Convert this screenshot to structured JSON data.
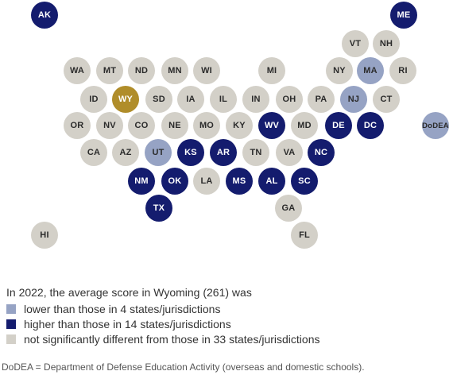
{
  "colors": {
    "lower": "#96A3C4",
    "higher": "#141C6E",
    "not_significant": "#D3D0C8",
    "focal": "#B08D2A",
    "text_dark_bg": "#ffffff",
    "text_light_bg": "#2b2b2b"
  },
  "states": [
    {
      "code": "AK",
      "category": "higher"
    },
    {
      "code": "ME",
      "category": "higher"
    },
    {
      "code": "VT",
      "category": "not_significant"
    },
    {
      "code": "NH",
      "category": "not_significant"
    },
    {
      "code": "WA",
      "category": "not_significant"
    },
    {
      "code": "MT",
      "category": "not_significant"
    },
    {
      "code": "ND",
      "category": "not_significant"
    },
    {
      "code": "MN",
      "category": "not_significant"
    },
    {
      "code": "WI",
      "category": "not_significant"
    },
    {
      "code": "MI",
      "category": "not_significant"
    },
    {
      "code": "NY",
      "category": "not_significant"
    },
    {
      "code": "MA",
      "category": "lower"
    },
    {
      "code": "RI",
      "category": "not_significant"
    },
    {
      "code": "ID",
      "category": "not_significant"
    },
    {
      "code": "WY",
      "category": "focal"
    },
    {
      "code": "SD",
      "category": "not_significant"
    },
    {
      "code": "IA",
      "category": "not_significant"
    },
    {
      "code": "IL",
      "category": "not_significant"
    },
    {
      "code": "IN",
      "category": "not_significant"
    },
    {
      "code": "OH",
      "category": "not_significant"
    },
    {
      "code": "PA",
      "category": "not_significant"
    },
    {
      "code": "NJ",
      "category": "lower"
    },
    {
      "code": "CT",
      "category": "not_significant"
    },
    {
      "code": "OR",
      "category": "not_significant"
    },
    {
      "code": "NV",
      "category": "not_significant"
    },
    {
      "code": "CO",
      "category": "not_significant"
    },
    {
      "code": "NE",
      "category": "not_significant"
    },
    {
      "code": "MO",
      "category": "not_significant"
    },
    {
      "code": "KY",
      "category": "not_significant"
    },
    {
      "code": "WV",
      "category": "higher"
    },
    {
      "code": "MD",
      "category": "not_significant"
    },
    {
      "code": "DE",
      "category": "higher"
    },
    {
      "code": "DC",
      "category": "higher"
    },
    {
      "code": "DoDEA",
      "category": "lower"
    },
    {
      "code": "CA",
      "category": "not_significant"
    },
    {
      "code": "AZ",
      "category": "not_significant"
    },
    {
      "code": "UT",
      "category": "lower"
    },
    {
      "code": "KS",
      "category": "higher"
    },
    {
      "code": "AR",
      "category": "higher"
    },
    {
      "code": "TN",
      "category": "not_significant"
    },
    {
      "code": "VA",
      "category": "not_significant"
    },
    {
      "code": "NC",
      "category": "higher"
    },
    {
      "code": "NM",
      "category": "higher"
    },
    {
      "code": "OK",
      "category": "higher"
    },
    {
      "code": "LA",
      "category": "not_significant"
    },
    {
      "code": "MS",
      "category": "higher"
    },
    {
      "code": "AL",
      "category": "higher"
    },
    {
      "code": "SC",
      "category": "higher"
    },
    {
      "code": "GA",
      "category": "not_significant"
    },
    {
      "code": "TX",
      "category": "higher"
    },
    {
      "code": "HI",
      "category": "not_significant"
    },
    {
      "code": "FL",
      "category": "not_significant"
    }
  ],
  "legend": {
    "intro": "In 2022, the average score in Wyoming (261) was",
    "lower": "lower than those in 4 states/jurisdictions",
    "higher": "higher than those in 14 states/jurisdictions",
    "not_significant": "not significantly different from those in 33 states/jurisdictions"
  },
  "footnote": "DoDEA = Department of Defense Education Activity (overseas and domestic schools)."
}
